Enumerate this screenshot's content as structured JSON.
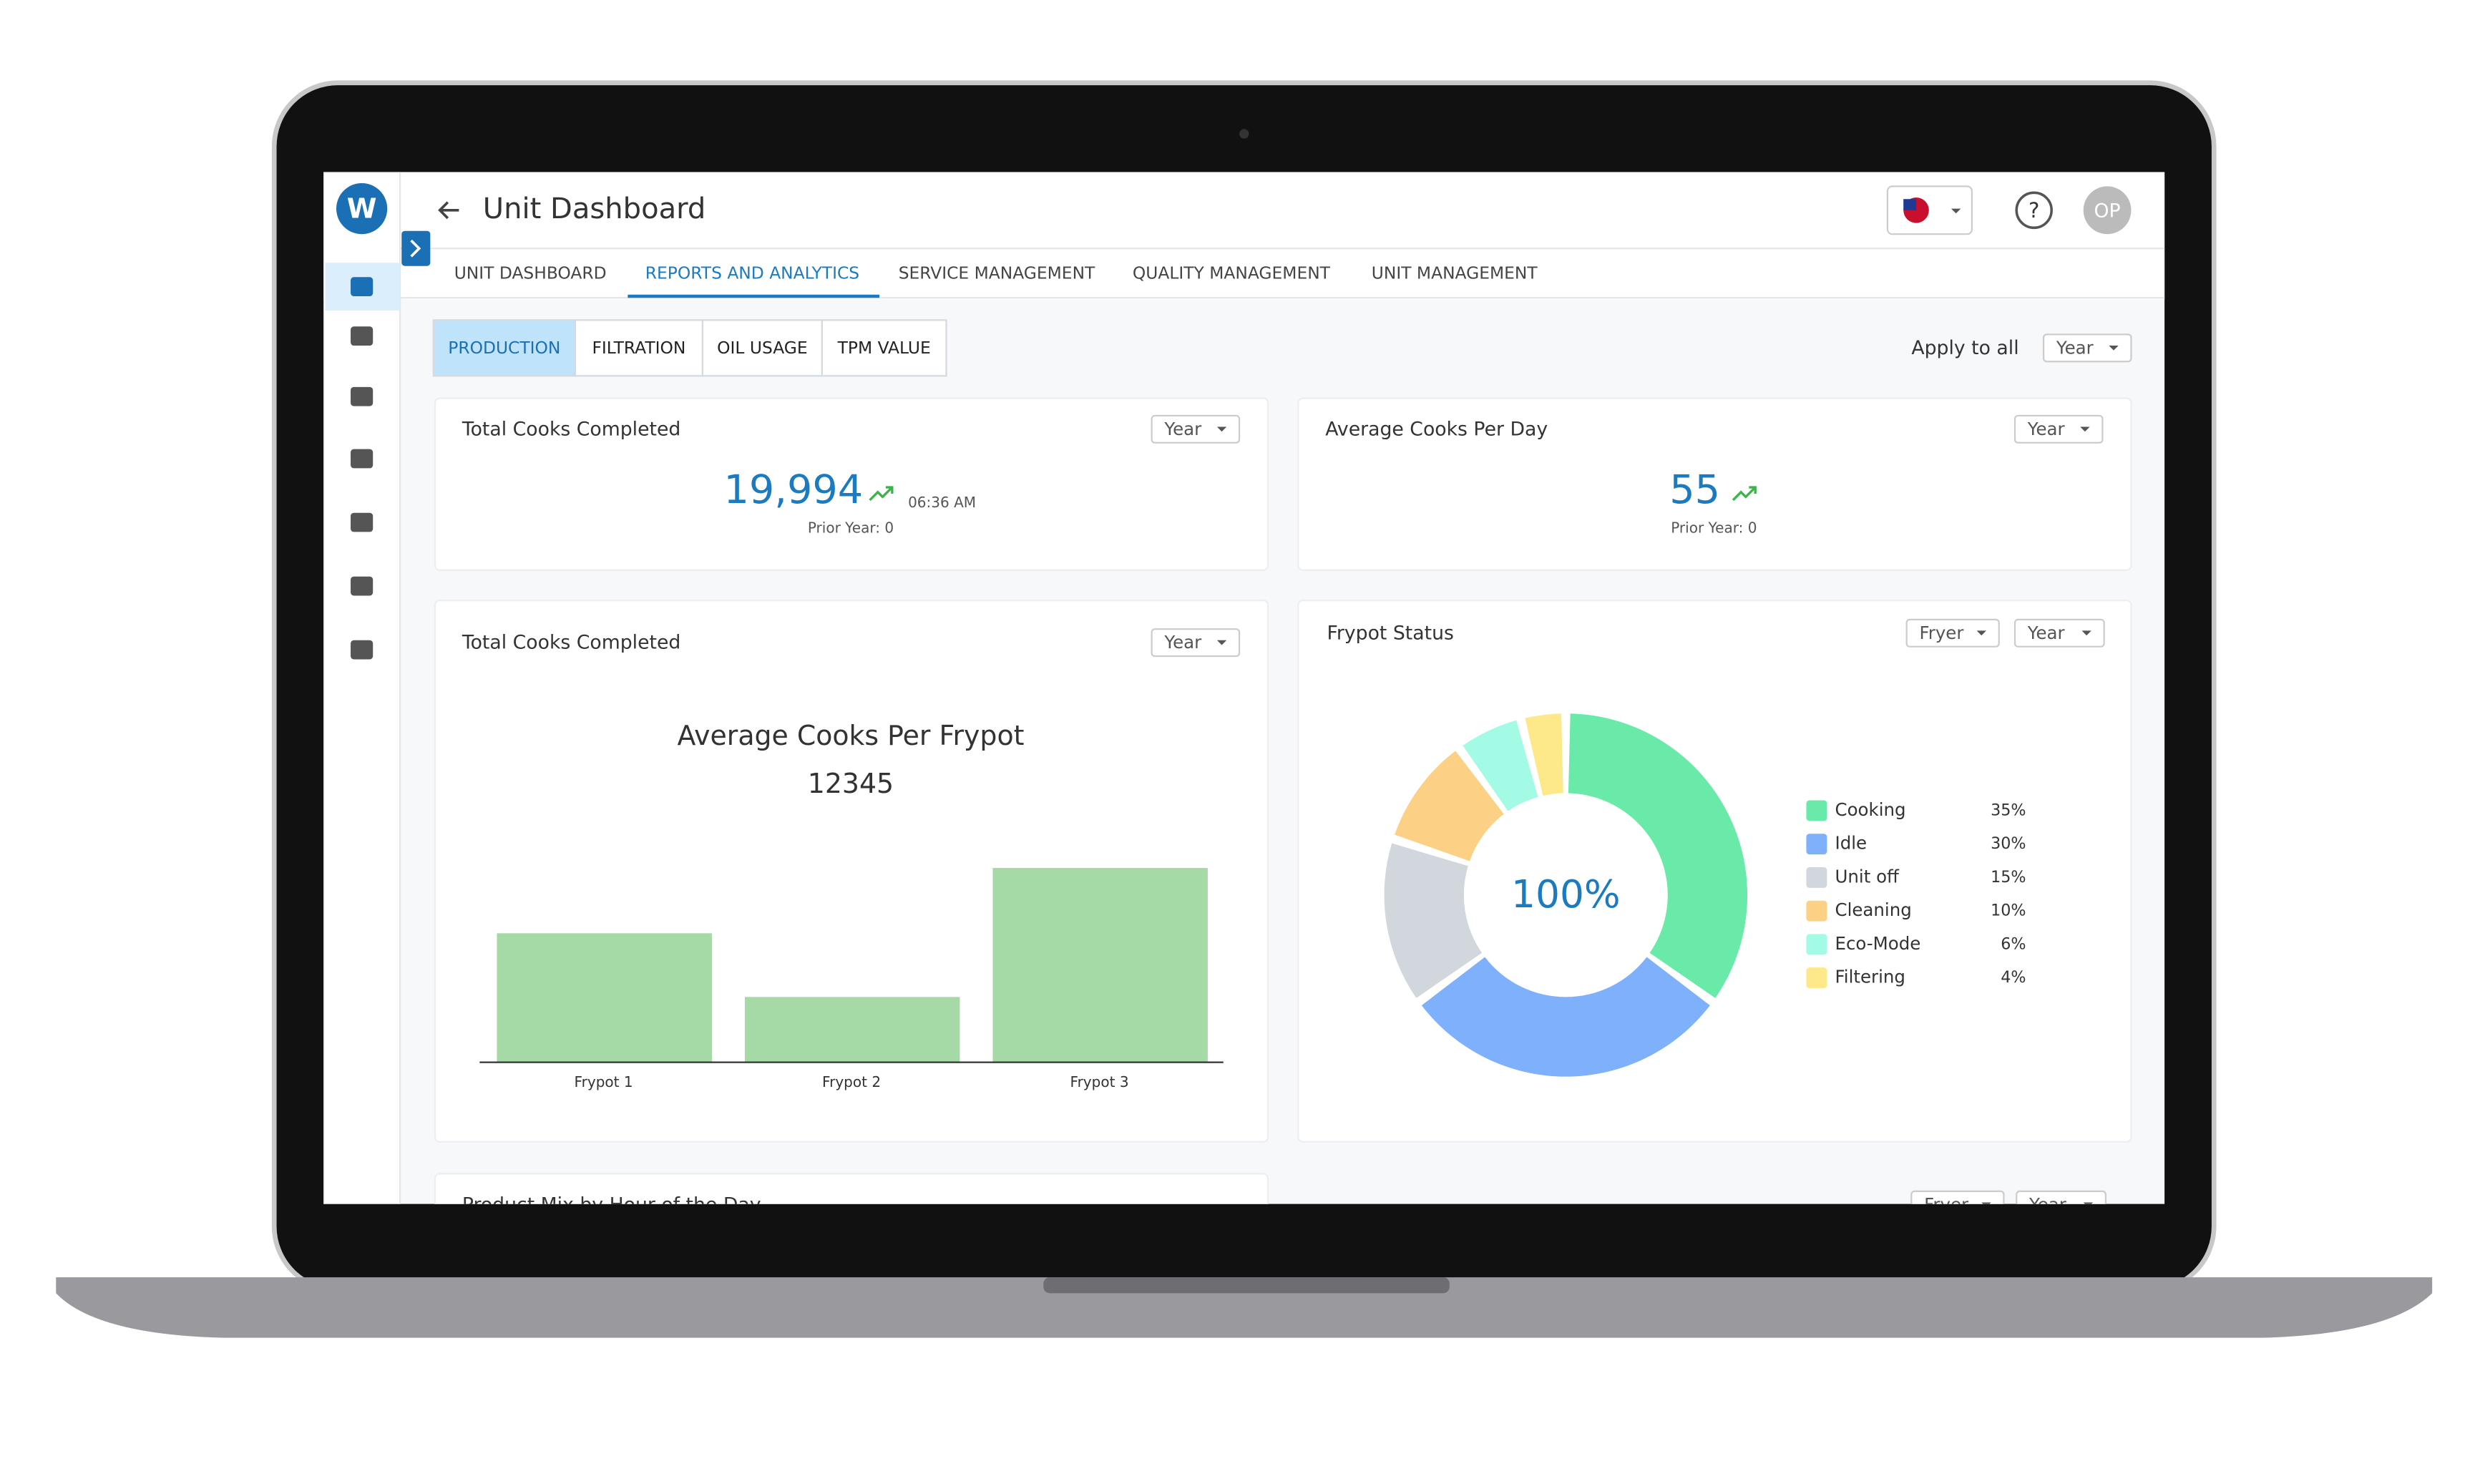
{
  "header": {
    "title": "Unit Dashboard",
    "avatar": "OP"
  },
  "tabs": [
    "UNIT DASHBOARD",
    "REPORTS AND ANALYTICS",
    "SERVICE MANAGEMENT",
    "QUALITY MANAGEMENT",
    "UNIT MANAGEMENT"
  ],
  "active_tab": 1,
  "subtabs": [
    "PRODUCTION",
    "FILTRATION",
    "OIL USAGE",
    "TPM VALUE"
  ],
  "active_subtab": 0,
  "apply_to_all": {
    "label": "Apply to all",
    "select": "Year"
  },
  "cards": [
    {
      "title": "Total Cooks Completed",
      "select": "Year",
      "value": "19,994",
      "time": "06:36 AM",
      "prior": "Prior Year: 0"
    },
    {
      "title": "Average Cooks Per Day",
      "select": "Year",
      "value": "55",
      "prior": "Prior Year: 0"
    }
  ],
  "chart_data": [
    {
      "type": "bar",
      "card_title": "Total Cooks Completed",
      "select": "Year",
      "title": "Average Cooks Per Frypot",
      "subtitle": "12345",
      "categories": [
        "Frypot 1",
        "Frypot 2",
        "Frypot 3"
      ],
      "values": [
        81,
        41,
        122
      ],
      "color": "#a5d9a6",
      "ylim": [
        0,
        150
      ]
    },
    {
      "type": "pie",
      "title": "Frypot Status",
      "filters": [
        "Fryer",
        "Year"
      ],
      "center_label": "100%",
      "categories": [
        "Cooking",
        "Idle",
        "Unit off",
        "Cleaning",
        "Eco-Mode",
        "Filtering"
      ],
      "values": [
        35,
        30,
        15,
        10,
        6,
        4
      ],
      "value_labels": [
        "35%",
        "30%",
        "15%",
        "10%",
        "6%",
        "4%"
      ],
      "colors": [
        "#69eaa8",
        "#7fb0fb",
        "#d1d7dc",
        "#fdd185",
        "#a3fbe6",
        "#fde88a"
      ]
    }
  ],
  "bottom_card": {
    "title": "Product Mix by Hour of the Day",
    "filters": [
      "Fryer",
      "Year"
    ]
  }
}
